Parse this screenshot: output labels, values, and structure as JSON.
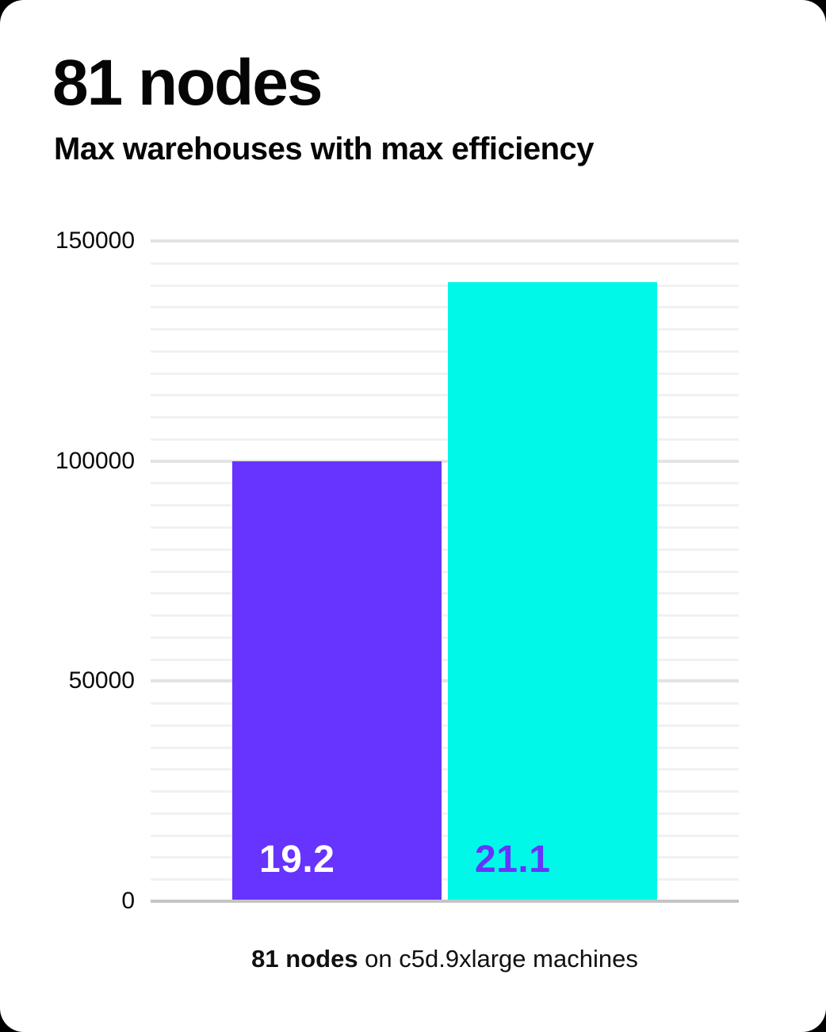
{
  "header": {
    "title": "81 nodes",
    "subtitle": "Max warehouses with max efficiency"
  },
  "caption": {
    "bold": "81 nodes",
    "rest": " on c5d.9xlarge machines"
  },
  "chart_data": {
    "type": "bar",
    "title": "81 nodes",
    "subtitle": "Max warehouses with max efficiency",
    "xlabel": "81 nodes on c5d.9xlarge machines",
    "ylabel": "",
    "categories": [
      "19.2",
      "21.1"
    ],
    "values": [
      99500,
      140300
    ],
    "bar_labels": [
      "19.2",
      "21.1"
    ],
    "bar_colors": [
      "#6733ff",
      "#00f8e8"
    ],
    "bar_label_colors": [
      "#ffffff",
      "#6733ff"
    ],
    "ylim": [
      0,
      150000
    ],
    "ytick_values": [
      0,
      50000,
      100000,
      150000
    ],
    "ytick_labels": [
      "0",
      "50000",
      "100000",
      "150000"
    ],
    "minor_grid_step": 5000,
    "grid": true,
    "legend_position": "none",
    "axis_color": "#c4c4c4",
    "major_grid_color": "#e3e3e3",
    "minor_grid_color": "#f1f1f1"
  }
}
